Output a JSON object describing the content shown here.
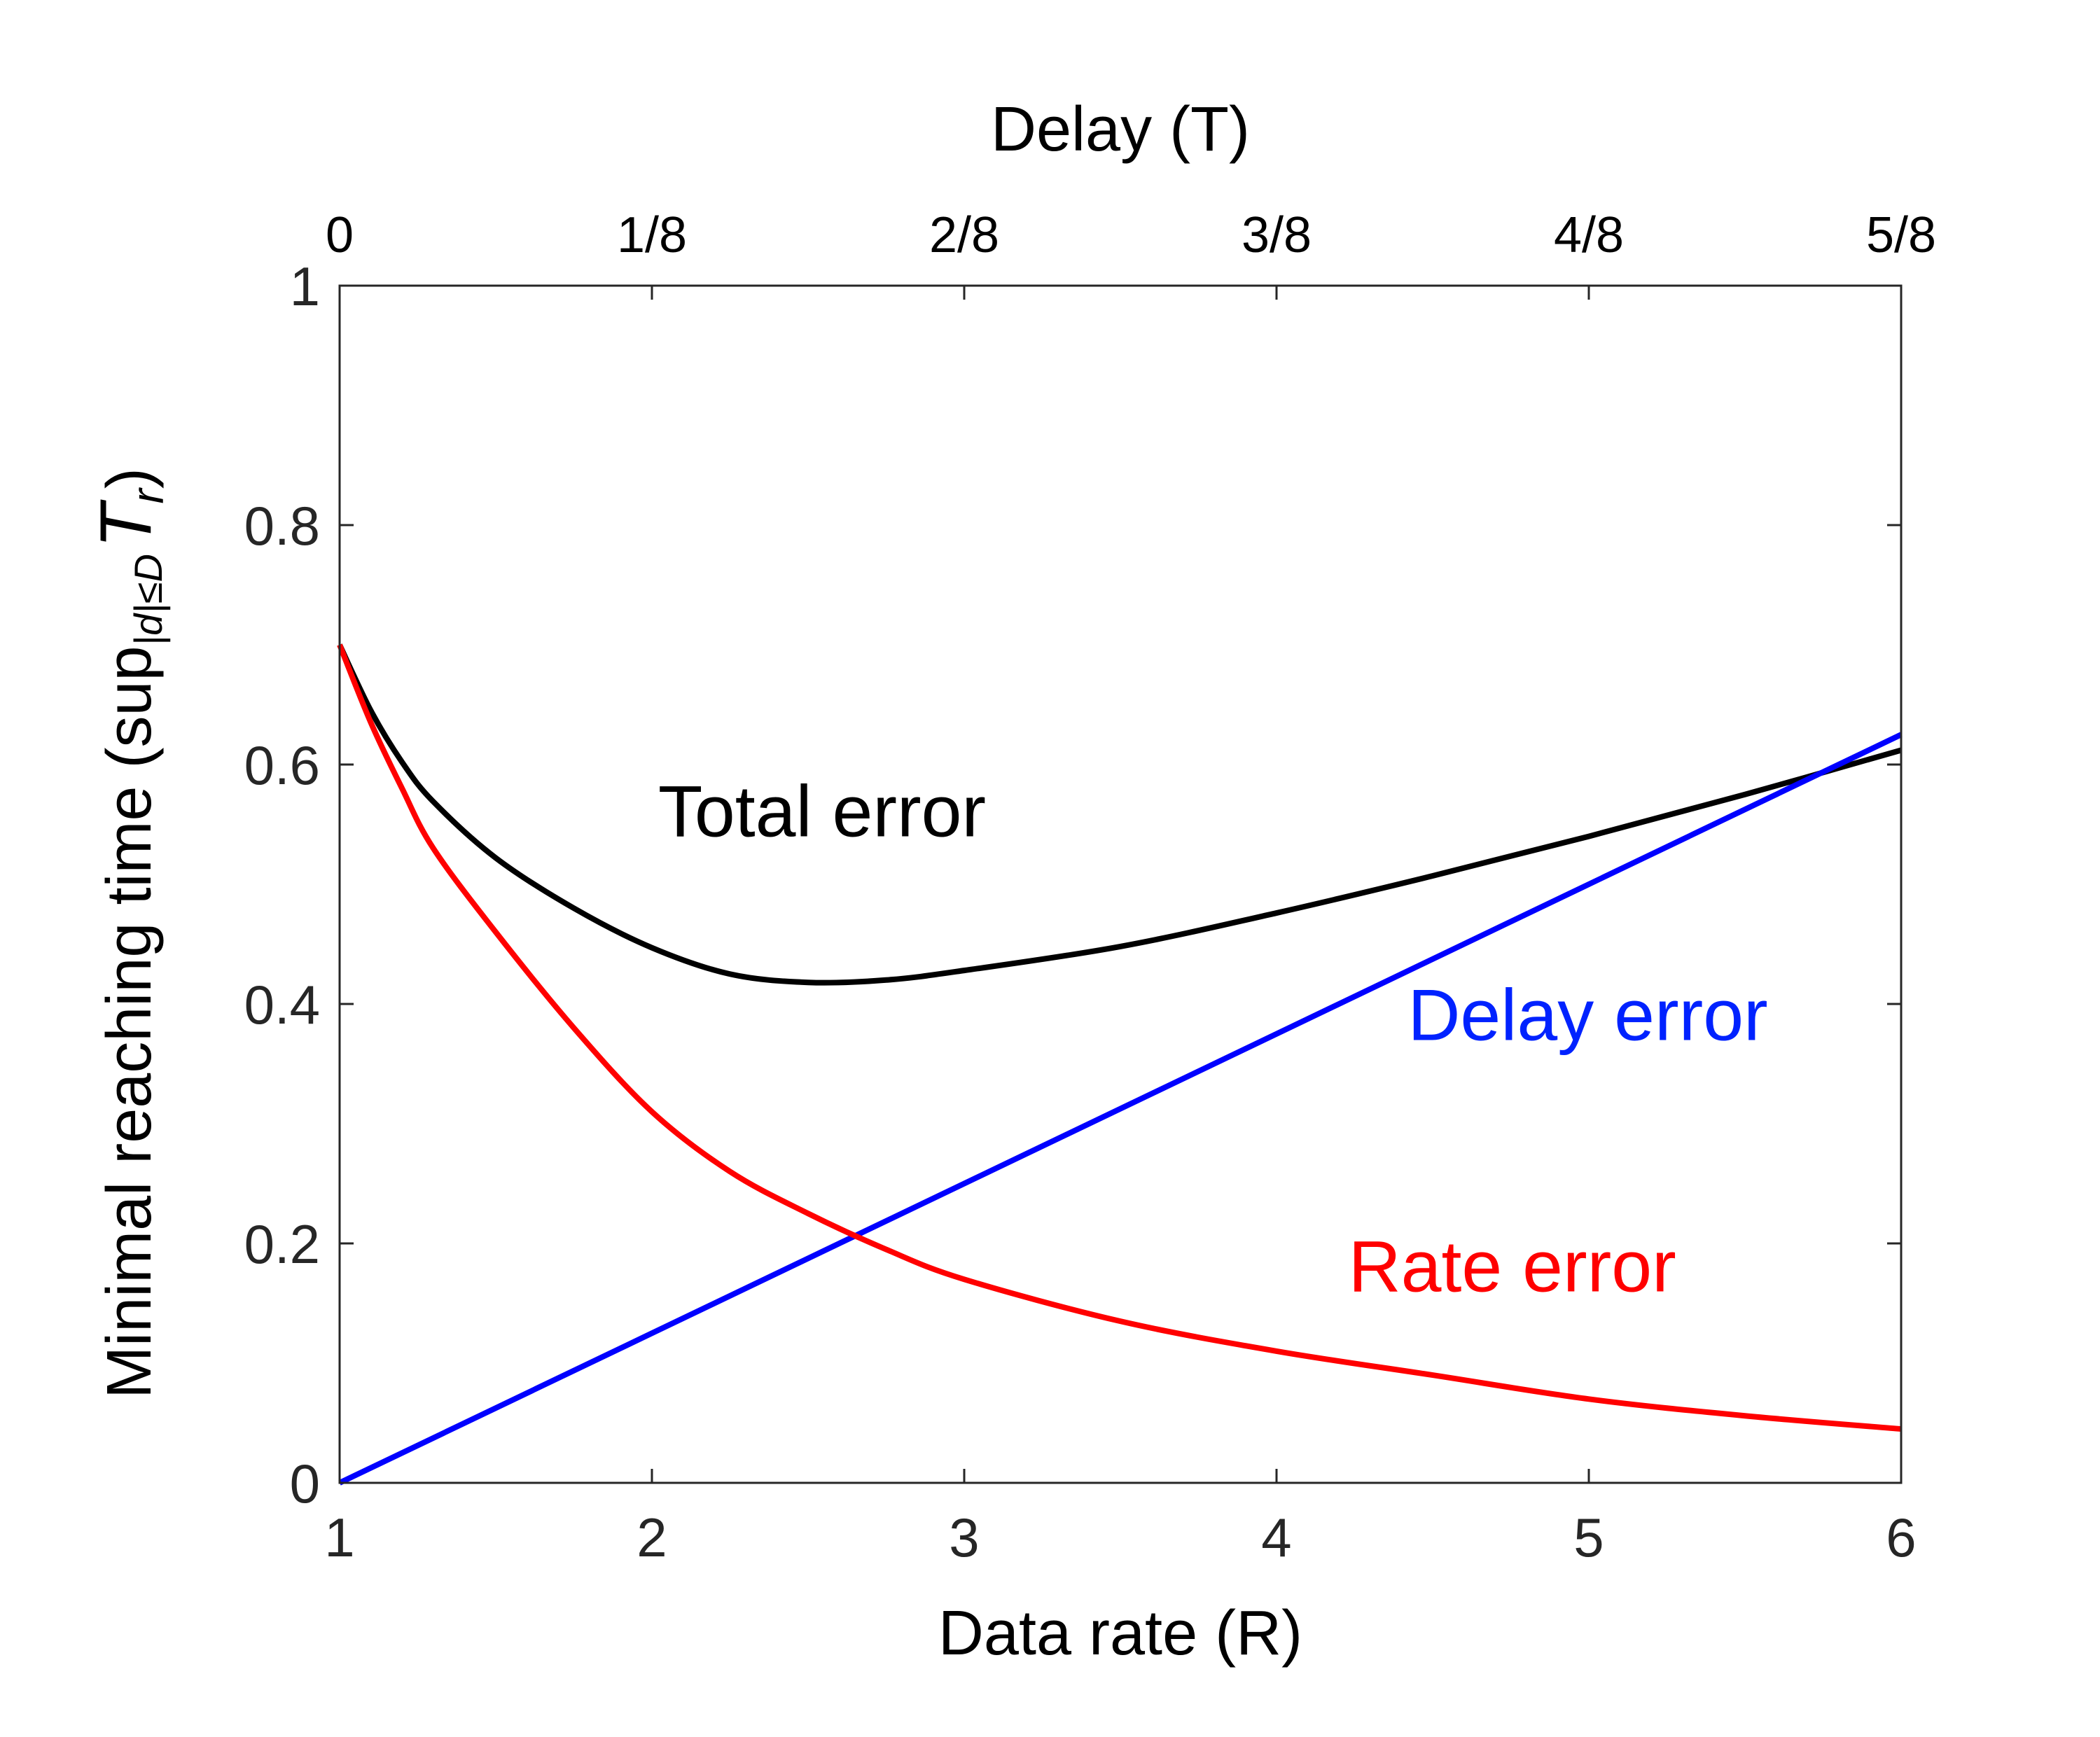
{
  "chart_data": {
    "type": "line",
    "xlabel": "Data rate (R)",
    "top_xlabel": "Delay (T)",
    "ylabel_main": "Minimal reaching time (sup",
    "ylabel_sub": "|d|≤D",
    "ylabel_T": "T",
    "ylabel_r": "r",
    "ylabel_close": ")",
    "xlim": [
      1,
      6
    ],
    "ylim": [
      0,
      1
    ],
    "xticks": [
      1,
      2,
      3,
      4,
      5,
      6
    ],
    "xtick_labels": [
      "1",
      "2",
      "3",
      "4",
      "5",
      "6"
    ],
    "yticks": [
      0,
      0.2,
      0.4,
      0.6,
      0.8,
      1
    ],
    "ytick_labels": [
      "0",
      "0.2",
      "0.4",
      "0.6",
      "0.8",
      "1"
    ],
    "top_xticks": [
      1,
      2,
      3,
      4,
      5,
      6
    ],
    "top_xtick_labels": [
      "0",
      "1/8",
      "2/8",
      "3/8",
      "4/8",
      "5/8"
    ],
    "grid": false,
    "series": [
      {
        "name": "Total error",
        "color": "#000000",
        "x": [
          1.0,
          1.1,
          1.2,
          1.3,
          1.5,
          1.75,
          2.0,
          2.25,
          2.5,
          2.75,
          3.0,
          3.5,
          4.0,
          4.5,
          5.0,
          5.5,
          6.0
        ],
        "y": [
          0.7,
          0.645,
          0.602,
          0.569,
          0.522,
          0.48,
          0.447,
          0.425,
          0.418,
          0.42,
          0.428,
          0.448,
          0.476,
          0.507,
          0.54,
          0.575,
          0.612
        ]
      },
      {
        "name": "Delay error",
        "color": "#0000ff",
        "x": [
          1,
          6
        ],
        "y": [
          0,
          0.625
        ]
      },
      {
        "name": "Rate error",
        "color": "#ff0000",
        "x": [
          1.0,
          1.1,
          1.2,
          1.3,
          1.5,
          1.75,
          2.0,
          2.25,
          2.5,
          2.75,
          3.0,
          3.5,
          4.0,
          4.5,
          5.0,
          5.5,
          6.0
        ],
        "y": [
          0.7,
          0.635,
          0.58,
          0.53,
          0.46,
          0.38,
          0.31,
          0.26,
          0.225,
          0.195,
          0.17,
          0.135,
          0.11,
          0.09,
          0.07,
          0.056,
          0.045
        ]
      }
    ]
  },
  "annotations": [
    {
      "text": "Total error",
      "color": "#000000",
      "x": 2.02,
      "y": 0.54
    },
    {
      "text": "Delay error",
      "color": "#0022ff",
      "x": 4.42,
      "y": 0.37
    },
    {
      "text": "Rate error",
      "color": "#ff0000",
      "x": 4.23,
      "y": 0.16
    }
  ]
}
